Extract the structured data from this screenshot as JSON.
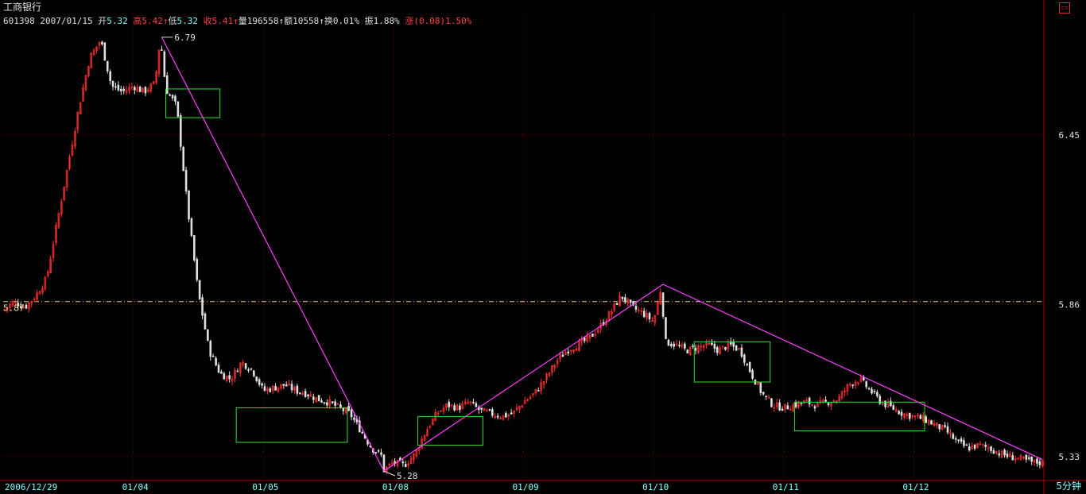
{
  "header": {
    "stock_name": "工商银行",
    "code": "601398",
    "date": "2007/01/15",
    "open_label": "开",
    "open": "5.32",
    "high_label": "高",
    "high": "5.42",
    "low_label": "低",
    "low": "5.32",
    "close_label": "收",
    "close": "5.41",
    "volume_label": "量",
    "volume": "196558",
    "amount_label": "额",
    "amount": "10558",
    "turnover_label": "换",
    "turnover": "0.01%",
    "amplitude_label": "振",
    "amplitude": "1.88%",
    "change_label": "涨",
    "change": "(0.08)1.50%"
  },
  "corner_icon": "restore-icon",
  "period": "5分钟",
  "colors": {
    "background": "#000000",
    "axis": "#b00000",
    "up_candle": "#ff3030",
    "down_candle": "#e0e0e0",
    "trend_line": "#ff40ff",
    "box": "#30e030",
    "reference_line": "#e0d080",
    "gridline": "#800000"
  },
  "chart_data": {
    "type": "candlestick",
    "title": "工商银行",
    "x_tick_labels": [
      "2006/12/29",
      "01/04",
      "01/05",
      "01/08",
      "01/09",
      "01/10",
      "01/11",
      "01/12"
    ],
    "y_tick_labels": [
      6.45,
      5.86,
      5.33
    ],
    "ylim": [
      5.25,
      6.82
    ],
    "reference_price": 5.87,
    "reference_label": "5.87",
    "grid": true,
    "candles_per_session": 48,
    "session_closes": [
      [
        5.84,
        5.87,
        5.85,
        5.89,
        5.95,
        6.15,
        6.35,
        6.55,
        6.72,
        6.78,
        6.62,
        6.6
      ],
      [
        6.62,
        6.6,
        6.63,
        6.61,
        6.55,
        6.2,
        5.9,
        5.7,
        5.62,
        5.6,
        5.66,
        5.63
      ],
      [
        5.56,
        5.57,
        5.58,
        5.56,
        5.55,
        5.53,
        5.52,
        5.5,
        5.48,
        5.42,
        5.36,
        5.33
      ],
      [
        5.31,
        5.3,
        5.34,
        5.42,
        5.48,
        5.51,
        5.5,
        5.52,
        5.49,
        5.48,
        5.47,
        5.48
      ],
      [
        5.52,
        5.55,
        5.6,
        5.66,
        5.7,
        5.72,
        5.74,
        5.78,
        5.83,
        5.89,
        5.85,
        5.83
      ],
      [
        5.8,
        5.73,
        5.72,
        5.7,
        5.71,
        5.72,
        5.7,
        5.72,
        5.7,
        5.62,
        5.55,
        5.51
      ],
      [
        5.5,
        5.51,
        5.52,
        5.51,
        5.52,
        5.53,
        5.58,
        5.6,
        5.56,
        5.52,
        5.5,
        5.48
      ],
      [
        5.47,
        5.46,
        5.44,
        5.42,
        5.38,
        5.36,
        5.37,
        5.36,
        5.34,
        5.33,
        5.32,
        5.31
      ]
    ],
    "annotations": [
      {
        "text": "6.79",
        "time_index": 58,
        "price": 6.79
      },
      {
        "text": "5.28",
        "time_index": 140,
        "price": 5.28
      }
    ],
    "trend_lines": [
      {
        "from": {
          "time_index": 58,
          "price": 6.79
        },
        "to": {
          "time_index": 140,
          "price": 5.28
        }
      },
      {
        "from": {
          "time_index": 140,
          "price": 5.28
        },
        "to": {
          "time_index": 243,
          "price": 5.93
        }
      },
      {
        "from": {
          "time_index": 243,
          "price": 5.93
        },
        "to": {
          "time_index": 383,
          "price": 5.32
        }
      }
    ],
    "consolidation_boxes": [
      {
        "t0": 60,
        "t1": 80,
        "p_top": 6.61,
        "p_bottom": 6.51
      },
      {
        "t0": 86,
        "t1": 127,
        "p_top": 5.5,
        "p_bottom": 5.38
      },
      {
        "t0": 153,
        "t1": 177,
        "p_top": 5.47,
        "p_bottom": 5.37
      },
      {
        "t0": 255,
        "t1": 283,
        "p_top": 5.73,
        "p_bottom": 5.59
      },
      {
        "t0": 292,
        "t1": 340,
        "p_top": 5.52,
        "p_bottom": 5.42
      }
    ]
  }
}
